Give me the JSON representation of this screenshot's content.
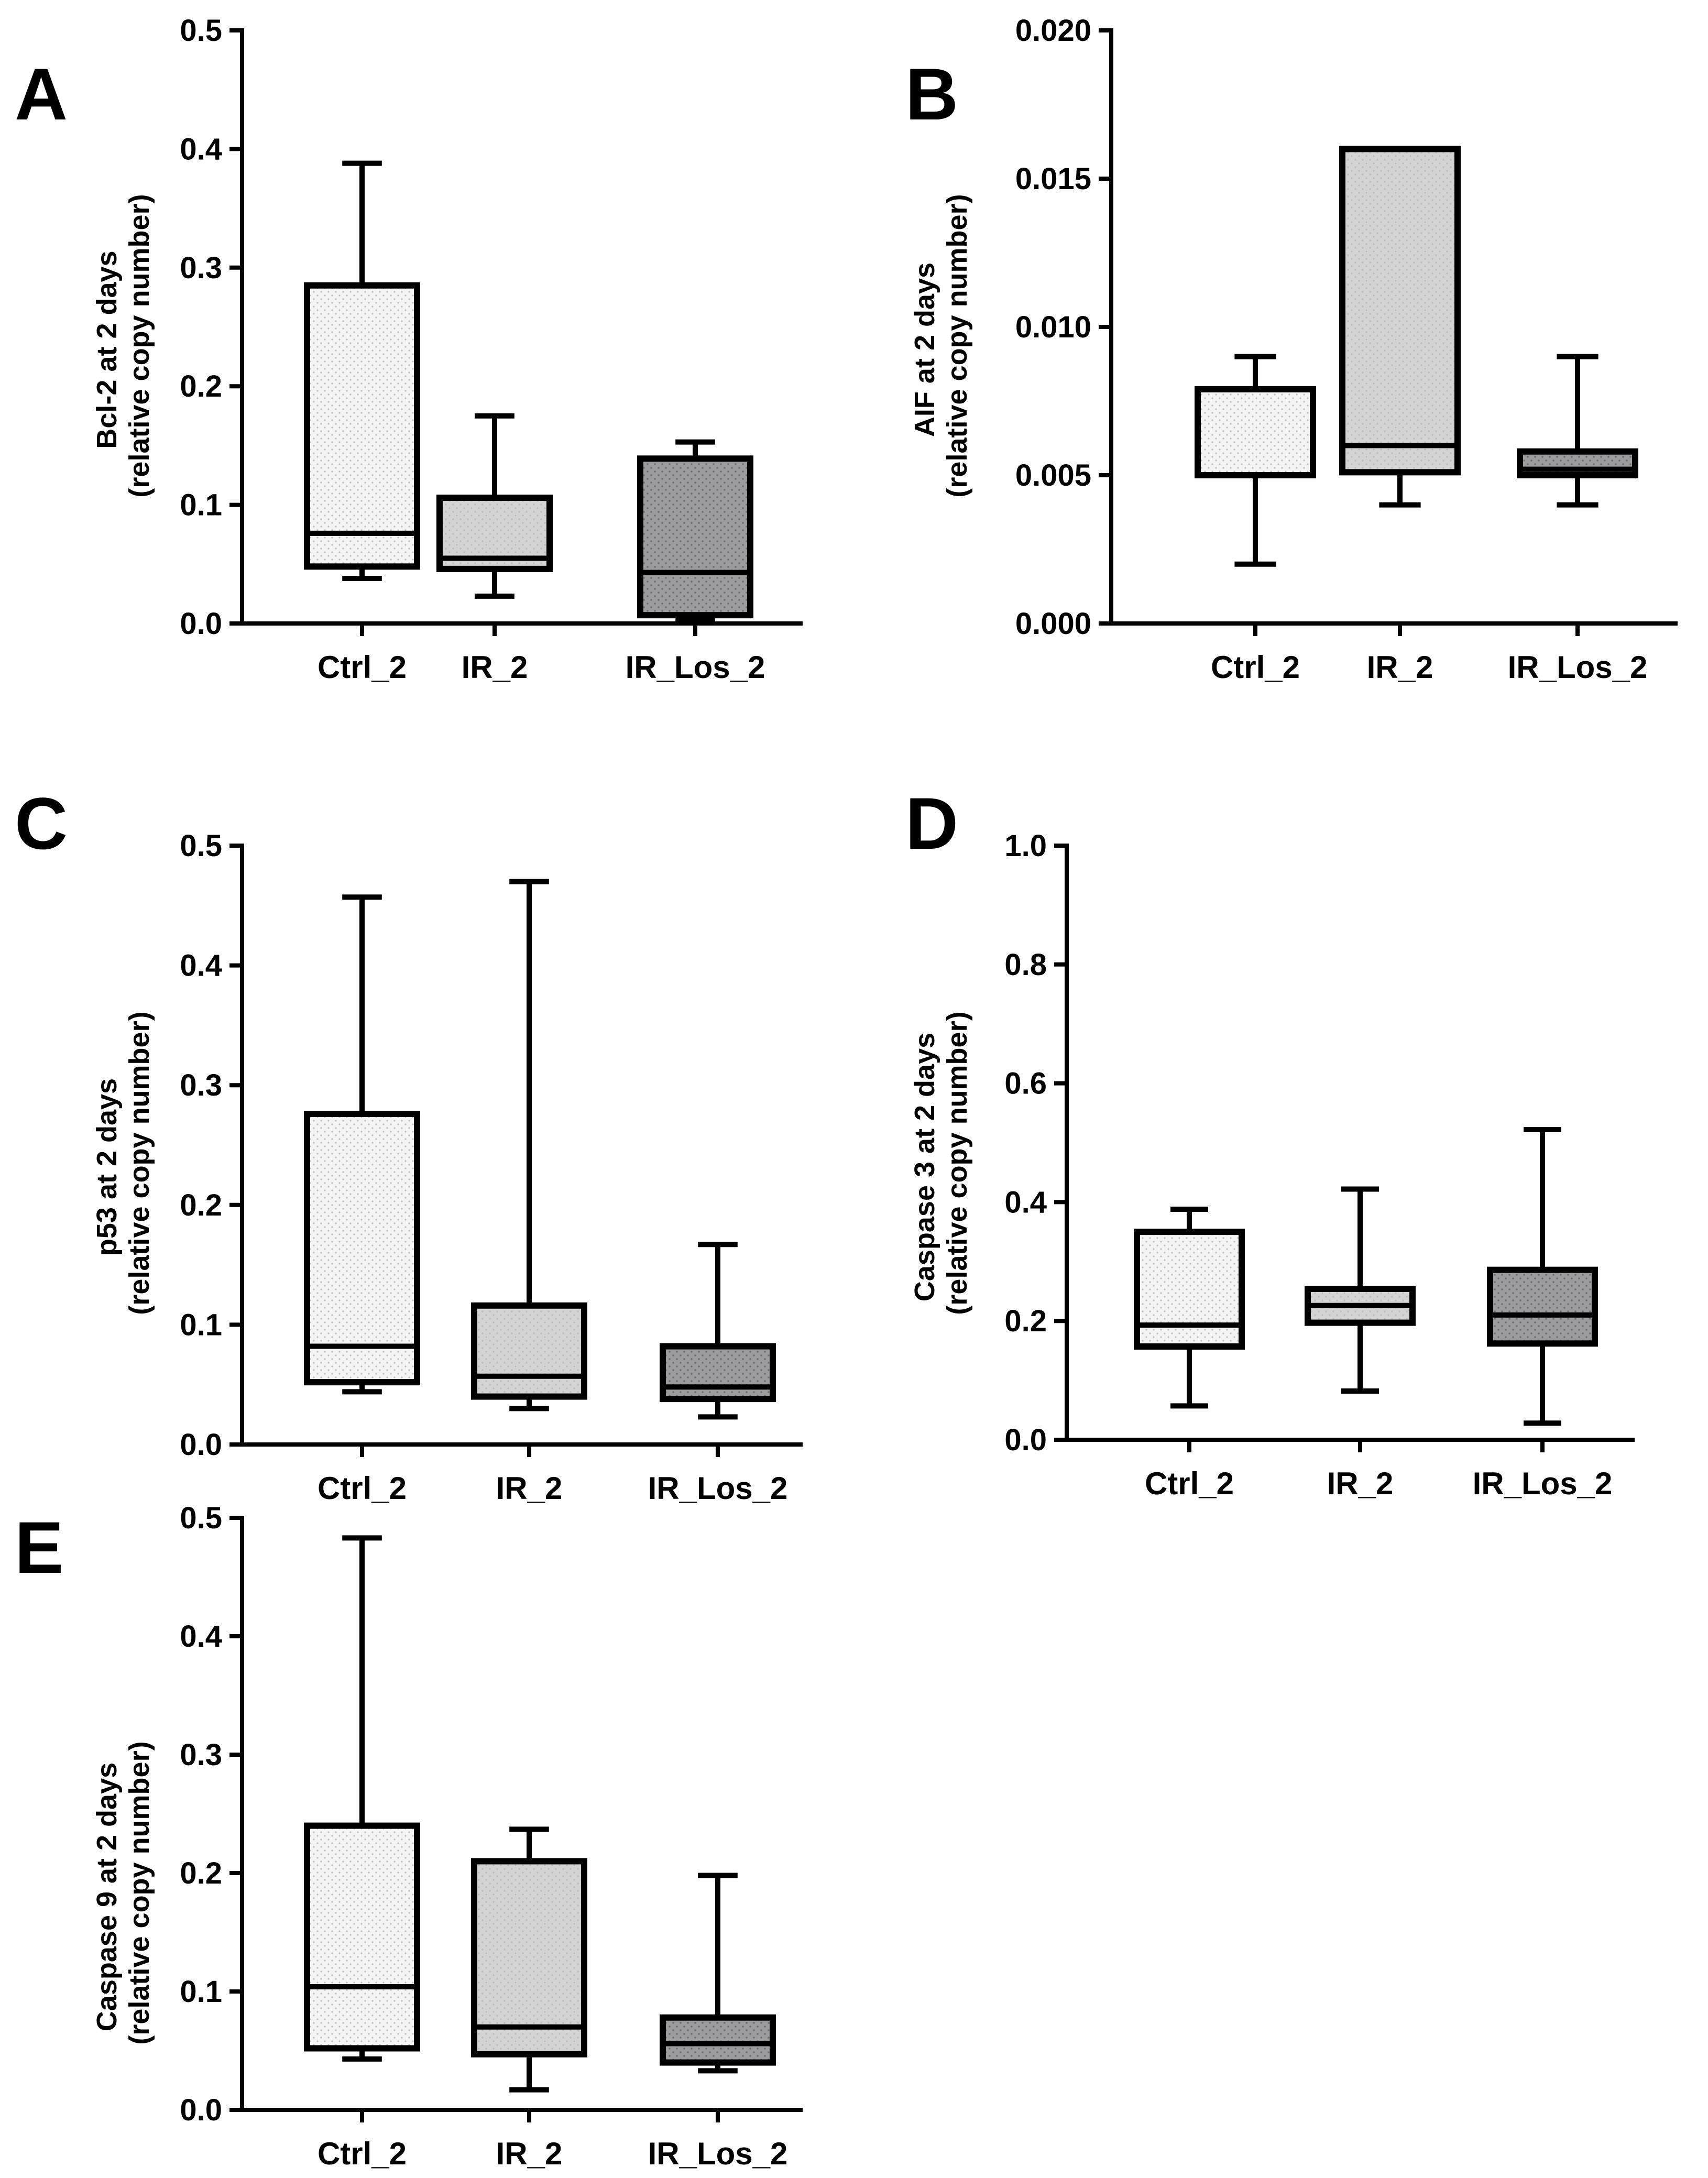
{
  "figure_colors": {
    "Ctrl_2": "#f4f4f4",
    "IR_2": "#d4d4d4",
    "IR_Los_2": "#9c9c9e",
    "dots_light": "#bdbdbd",
    "dots_dark": "#6e6e70"
  },
  "chart_data": [
    {
      "panel": "A",
      "type": "box",
      "ylabel": [
        "Bcl-2 at 2 days",
        "(relative copy number)"
      ],
      "categories": [
        "Ctrl_2",
        "IR_2",
        "IR_Los_2"
      ],
      "ylim": [
        0,
        0.5
      ],
      "yticks": [
        0.0,
        0.1,
        0.2,
        0.3,
        0.4,
        0.5
      ],
      "tick_labels": [
        "0.0",
        "0.1",
        "0.2",
        "0.3",
        "0.4",
        "0.5"
      ],
      "boxes": [
        {
          "min": 0.038,
          "q1": 0.048,
          "median": 0.076,
          "q3": 0.285,
          "max": 0.388
        },
        {
          "min": 0.023,
          "q1": 0.046,
          "median": 0.055,
          "q3": 0.106,
          "max": 0.175
        },
        {
          "min": 0.004,
          "q1": 0.007,
          "median": 0.043,
          "q3": 0.139,
          "max": 0.153
        }
      ]
    },
    {
      "panel": "B",
      "type": "box",
      "ylabel": [
        "AIF at 2 days",
        "(relative copy number)"
      ],
      "categories": [
        "Ctrl_2",
        "IR_2",
        "IR_Los_2"
      ],
      "ylim": [
        0,
        0.02
      ],
      "yticks": [
        0.0,
        0.005,
        0.01,
        0.015,
        0.02
      ],
      "tick_labels": [
        "0.000",
        "0.005",
        "0.010",
        "0.015",
        "0.020"
      ],
      "boxes": [
        {
          "min": 0.002,
          "q1": 0.005,
          "median": 0.005,
          "q3": 0.0079,
          "max": 0.009
        },
        {
          "min": 0.004,
          "q1": 0.0051,
          "median": 0.006,
          "q3": 0.016,
          "max": 0.016
        },
        {
          "min": 0.004,
          "q1": 0.005,
          "median": 0.0052,
          "q3": 0.0058,
          "max": 0.009
        }
      ]
    },
    {
      "panel": "C",
      "type": "box",
      "ylabel": [
        "p53 at 2 days",
        "(relative copy number)"
      ],
      "categories": [
        "Ctrl_2",
        "IR_2",
        "IR_Los_2"
      ],
      "ylim": [
        0,
        0.5
      ],
      "yticks": [
        0.0,
        0.1,
        0.2,
        0.3,
        0.4,
        0.5
      ],
      "tick_labels": [
        "0.0",
        "0.1",
        "0.2",
        "0.3",
        "0.4",
        "0.5"
      ],
      "boxes": [
        {
          "min": 0.044,
          "q1": 0.052,
          "median": 0.082,
          "q3": 0.276,
          "max": 0.457
        },
        {
          "min": 0.03,
          "q1": 0.04,
          "median": 0.057,
          "q3": 0.116,
          "max": 0.47
        },
        {
          "min": 0.023,
          "q1": 0.038,
          "median": 0.048,
          "q3": 0.082,
          "max": 0.167
        }
      ]
    },
    {
      "panel": "D",
      "type": "box",
      "ylabel": [
        "Caspase 3 at 2 days",
        "(relative copy number)"
      ],
      "categories": [
        "Ctrl_2",
        "IR_2",
        "IR_Los_2"
      ],
      "ylim": [
        0,
        1.0
      ],
      "yticks": [
        0.0,
        0.2,
        0.4,
        0.6,
        0.8,
        1.0
      ],
      "tick_labels": [
        "0.0",
        "0.2",
        "0.4",
        "0.6",
        "0.8",
        "1.0"
      ],
      "boxes": [
        {
          "min": 0.057,
          "q1": 0.157,
          "median": 0.193,
          "q3": 0.35,
          "max": 0.388
        },
        {
          "min": 0.082,
          "q1": 0.197,
          "median": 0.226,
          "q3": 0.254,
          "max": 0.422
        },
        {
          "min": 0.028,
          "q1": 0.162,
          "median": 0.21,
          "q3": 0.286,
          "max": 0.522
        }
      ]
    },
    {
      "panel": "E",
      "type": "box",
      "ylabel": [
        "Caspase 9 at 2 days",
        "(relative copy number)"
      ],
      "categories": [
        "Ctrl_2",
        "IR_2",
        "IR_Los_2"
      ],
      "ylim": [
        0,
        0.5
      ],
      "yticks": [
        0.0,
        0.1,
        0.2,
        0.3,
        0.4,
        0.5
      ],
      "tick_labels": [
        "0.0",
        "0.1",
        "0.2",
        "0.3",
        "0.4",
        "0.5"
      ],
      "boxes": [
        {
          "min": 0.043,
          "q1": 0.052,
          "median": 0.104,
          "q3": 0.24,
          "max": 0.483
        },
        {
          "min": 0.017,
          "q1": 0.047,
          "median": 0.07,
          "q3": 0.21,
          "max": 0.237
        },
        {
          "min": 0.033,
          "q1": 0.04,
          "median": 0.056,
          "q3": 0.078,
          "max": 0.198
        }
      ]
    }
  ]
}
